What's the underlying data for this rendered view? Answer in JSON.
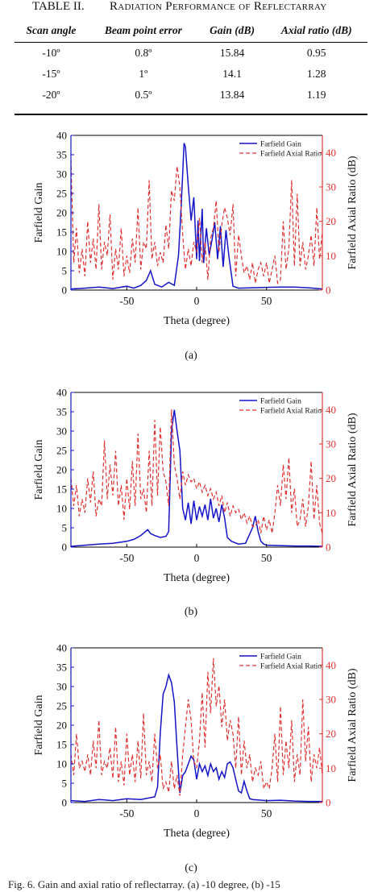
{
  "table": {
    "number": "TABLE II.",
    "title": "Radiation Performance of Reflectarray",
    "headers": [
      "Scan angle",
      "Beam point error",
      "Gain (dB)",
      "Axial ratio (dB)"
    ],
    "rows": [
      [
        "-10º",
        "0.8º",
        "15.84",
        "0.95"
      ],
      [
        "-15º",
        "1º",
        "14.1",
        "1.28"
      ],
      [
        "-20º",
        "0.5º",
        "13.84",
        "1.19"
      ]
    ]
  },
  "figure": {
    "caption": "Fig. 6. Gain and axial ratio of reflectarray. (a) -10 degree, (b) -15",
    "colors": {
      "gain": "#1414c8",
      "axial_ratio": "#e03232",
      "axis_left": "#1414c8",
      "axis_right": "#e03232"
    }
  },
  "chart_data": [
    {
      "type": "line",
      "panel_label": "(a)",
      "xlabel": "Theta (degree)",
      "ylabel": "Farfield Gain",
      "ylabel_right": "Farfield Axial Ratio (dB)",
      "xlim": [
        -90,
        90
      ],
      "ylim": [
        0,
        40
      ],
      "ylim_right": [
        0,
        45
      ],
      "xticks": [
        -50,
        0,
        50
      ],
      "yticks": [
        0,
        5,
        10,
        15,
        20,
        25,
        30,
        35,
        40
      ],
      "yticks_right": [
        0,
        10,
        20,
        30,
        40
      ],
      "legend": "top-right",
      "series": [
        {
          "name": "Farfield Gain",
          "axis": "left",
          "style": "solid",
          "x": [
            -90,
            -80,
            -70,
            -60,
            -50,
            -45,
            -40,
            -36,
            -33,
            -30,
            -25,
            -20,
            -16,
            -13,
            -11,
            -9,
            -8,
            -6,
            -4,
            -2,
            0,
            1,
            2,
            4,
            5,
            7,
            9,
            11,
            13,
            15,
            17,
            19,
            21,
            23,
            26,
            30,
            40,
            50,
            60,
            70,
            80,
            90
          ],
          "y": [
            0.3,
            0.5,
            0.8,
            0.4,
            1.0,
            0.5,
            1.2,
            2.5,
            5.0,
            1.5,
            0.8,
            2.0,
            1.2,
            9.0,
            22.0,
            38.0,
            37.0,
            27.0,
            18.0,
            24.0,
            8.0,
            18.0,
            7.5,
            21.0,
            7.0,
            16.0,
            9.0,
            13.0,
            17.5,
            8.0,
            16.5,
            6.0,
            15.5,
            9.0,
            1.0,
            0.5,
            0.6,
            0.7,
            0.8,
            0.8,
            0.6,
            0.3
          ]
        },
        {
          "name": "Farfield Axial Ratio",
          "axis": "right",
          "style": "dashed",
          "x": [
            -90,
            -88,
            -86,
            -84,
            -82,
            -80,
            -78,
            -76,
            -74,
            -72,
            -70,
            -68,
            -66,
            -64,
            -62,
            -60,
            -58,
            -56,
            -54,
            -52,
            -50,
            -48,
            -46,
            -44,
            -42,
            -40,
            -38,
            -36,
            -34,
            -32,
            -30,
            -28,
            -26,
            -24,
            -22,
            -20,
            -18,
            -16,
            -14,
            -12,
            -10,
            -8,
            -6,
            -4,
            -2,
            0,
            2,
            4,
            6,
            8,
            10,
            12,
            14,
            16,
            18,
            20,
            22,
            24,
            26,
            28,
            30,
            32,
            34,
            36,
            38,
            40,
            42,
            44,
            46,
            48,
            50,
            52,
            54,
            56,
            58,
            60,
            62,
            64,
            66,
            68,
            70,
            72,
            74,
            76,
            78,
            80,
            82,
            84,
            86,
            88,
            90
          ],
          "y": [
            38,
            8,
            18,
            5,
            12,
            4,
            20,
            8,
            15,
            6,
            25,
            6,
            14,
            10,
            22,
            3,
            12,
            6,
            18,
            4,
            10,
            5,
            15,
            8,
            24,
            6,
            14,
            12,
            32,
            9,
            14,
            7,
            11,
            8,
            19,
            12,
            29,
            26,
            36,
            30,
            16,
            6,
            12,
            7,
            14,
            11,
            21,
            8,
            14,
            3,
            15,
            18,
            26,
            11,
            19,
            24,
            21,
            16,
            25,
            4,
            16,
            10,
            5,
            7,
            3,
            8,
            2,
            6,
            8,
            4,
            8,
            2,
            6,
            10,
            2,
            3,
            20,
            6,
            12,
            32,
            7,
            28,
            7,
            14,
            6,
            10,
            16,
            7,
            24,
            9,
            17
          ]
        }
      ]
    },
    {
      "type": "line",
      "panel_label": "(b)",
      "xlabel": "Theta (degree)",
      "ylabel": "Farfield Gain",
      "ylabel_right": "Farfield Axial Ratio (dB)",
      "xlim": [
        -90,
        90
      ],
      "ylim": [
        0,
        40
      ],
      "ylim_right": [
        0,
        45
      ],
      "xticks": [
        -50,
        0,
        50
      ],
      "yticks": [
        0,
        5,
        10,
        15,
        20,
        25,
        30,
        35,
        40
      ],
      "yticks_right": [
        0,
        10,
        20,
        30,
        40
      ],
      "legend": "top-right",
      "series": [
        {
          "name": "Farfield Gain",
          "axis": "left",
          "style": "solid",
          "x": [
            -90,
            -80,
            -70,
            -60,
            -50,
            -45,
            -40,
            -35,
            -33,
            -30,
            -26,
            -22,
            -20,
            -18,
            -16,
            -14,
            -12,
            -10,
            -8,
            -6,
            -4,
            -2,
            0,
            2,
            4,
            6,
            8,
            10,
            12,
            14,
            16,
            18,
            20,
            22,
            25,
            30,
            35,
            40,
            42,
            44,
            46,
            48,
            50,
            60,
            70,
            80,
            90
          ],
          "y": [
            0.2,
            0.5,
            0.8,
            1.0,
            1.5,
            2.0,
            3.0,
            4.5,
            3.5,
            3.0,
            2.5,
            2.8,
            4.0,
            30.0,
            35.5,
            30.0,
            25.0,
            10.0,
            7.0,
            11.5,
            6.0,
            12.0,
            7.0,
            10.5,
            8.0,
            11.0,
            7.0,
            12.5,
            7.5,
            10.0,
            6.5,
            11.0,
            7.5,
            2.5,
            1.5,
            0.8,
            1.0,
            5.0,
            8.0,
            4.0,
            1.5,
            0.8,
            0.5,
            0.4,
            0.3,
            0.3,
            0.2
          ]
        },
        {
          "name": "Farfield Axial Ratio",
          "axis": "right",
          "style": "dashed",
          "x": [
            -90,
            -88,
            -86,
            -84,
            -82,
            -80,
            -78,
            -76,
            -74,
            -72,
            -70,
            -68,
            -66,
            -64,
            -62,
            -60,
            -58,
            -56,
            -54,
            -52,
            -50,
            -48,
            -46,
            -44,
            -42,
            -40,
            -38,
            -36,
            -34,
            -32,
            -30,
            -28,
            -26,
            -24,
            -22,
            -20,
            -18,
            -16,
            -14,
            -12,
            -10,
            -8,
            -6,
            -4,
            -2,
            0,
            2,
            4,
            6,
            8,
            10,
            12,
            14,
            16,
            18,
            20,
            22,
            24,
            26,
            28,
            30,
            32,
            34,
            36,
            38,
            40,
            42,
            44,
            46,
            48,
            50,
            52,
            54,
            56,
            58,
            60,
            62,
            64,
            66,
            68,
            70,
            72,
            74,
            76,
            78,
            80,
            82,
            84,
            86,
            88,
            90
          ],
          "y": [
            20,
            12,
            18,
            9,
            14,
            10,
            20,
            13,
            22,
            9,
            14,
            12,
            31,
            14,
            24,
            15,
            28,
            12,
            18,
            8,
            20,
            11,
            25,
            12,
            33,
            14,
            17,
            10,
            28,
            12,
            37,
            15,
            35,
            22,
            19,
            12,
            40,
            24,
            20,
            14,
            22,
            18,
            21,
            19,
            20,
            17,
            19,
            16,
            18,
            15,
            17,
            14,
            16,
            12,
            15,
            10,
            13,
            9,
            12,
            10,
            11,
            8,
            10,
            7,
            9,
            6,
            6,
            8,
            4,
            9,
            5,
            8,
            4,
            10,
            18,
            12,
            24,
            14,
            26,
            10,
            17,
            6,
            8,
            14,
            6,
            12,
            25,
            8,
            18,
            7,
            4
          ]
        }
      ]
    },
    {
      "type": "line",
      "panel_label": "(c)",
      "xlabel": "Theta (degree)",
      "ylabel": "Farfield Gain",
      "ylabel_right": "Farfield Axial Ratio (dB)",
      "xlim": [
        -90,
        90
      ],
      "ylim": [
        0,
        40
      ],
      "ylim_right": [
        0,
        45
      ],
      "xticks": [
        -50,
        0,
        50
      ],
      "yticks": [
        0,
        5,
        10,
        15,
        20,
        25,
        30,
        35,
        40
      ],
      "yticks_right": [
        0,
        10,
        20,
        30,
        40
      ],
      "legend": "top-right",
      "series": [
        {
          "name": "Farfield Gain",
          "axis": "left",
          "style": "solid",
          "x": [
            -90,
            -80,
            -70,
            -60,
            -50,
            -40,
            -30,
            -28,
            -26,
            -24,
            -22,
            -20,
            -18,
            -16,
            -14,
            -12,
            -10,
            -8,
            -6,
            -4,
            -2,
            0,
            2,
            4,
            6,
            8,
            10,
            12,
            14,
            16,
            18,
            20,
            22,
            24,
            26,
            28,
            30,
            32,
            34,
            36,
            38,
            40,
            50,
            60,
            70,
            80,
            90
          ],
          "y": [
            0.5,
            0.3,
            0.8,
            0.5,
            1.0,
            0.8,
            1.5,
            4.0,
            18.0,
            28.0,
            30.0,
            33.0,
            31.0,
            26.0,
            14.0,
            2.5,
            7.0,
            8.0,
            10.0,
            12.0,
            11.0,
            6.0,
            10.0,
            8.0,
            9.5,
            7.0,
            10.0,
            8.0,
            9.0,
            6.0,
            8.0,
            6.5,
            10.0,
            10.5,
            9.0,
            6.0,
            3.0,
            2.5,
            5.5,
            3.0,
            1.0,
            0.8,
            0.5,
            0.6,
            0.4,
            0.3,
            0.3
          ]
        },
        {
          "name": "Farfield Axial Ratio",
          "axis": "right",
          "style": "dashed",
          "x": [
            -90,
            -88,
            -86,
            -84,
            -82,
            -80,
            -78,
            -76,
            -74,
            -72,
            -70,
            -68,
            -66,
            -64,
            -62,
            -60,
            -58,
            -56,
            -54,
            -52,
            -50,
            -48,
            -46,
            -44,
            -42,
            -40,
            -38,
            -36,
            -34,
            -32,
            -30,
            -28,
            -26,
            -24,
            -22,
            -20,
            -18,
            -16,
            -14,
            -12,
            -10,
            -8,
            -6,
            -4,
            -2,
            0,
            2,
            4,
            6,
            8,
            10,
            12,
            14,
            16,
            18,
            20,
            22,
            24,
            26,
            28,
            30,
            32,
            34,
            36,
            38,
            40,
            42,
            44,
            46,
            48,
            50,
            52,
            54,
            56,
            58,
            60,
            62,
            64,
            66,
            68,
            70,
            72,
            74,
            76,
            78,
            80,
            82,
            84,
            86,
            88,
            90
          ],
          "y": [
            14,
            8,
            20,
            10,
            12,
            9,
            14,
            8,
            18,
            10,
            24,
            8,
            12,
            10,
            16,
            7,
            22,
            6,
            12,
            5,
            20,
            8,
            14,
            6,
            18,
            7,
            26,
            8,
            12,
            6,
            20,
            10,
            14,
            4,
            6,
            3,
            12,
            4,
            8,
            2,
            14,
            22,
            30,
            24,
            12,
            10,
            18,
            32,
            16,
            38,
            26,
            42,
            28,
            34,
            22,
            30,
            18,
            24,
            20,
            10,
            25,
            8,
            18,
            10,
            14,
            6,
            10,
            8,
            12,
            4,
            6,
            4,
            10,
            20,
            6,
            28,
            8,
            18,
            10,
            24,
            6,
            14,
            8,
            30,
            12,
            22,
            6,
            14,
            10,
            16,
            8
          ]
        }
      ]
    }
  ]
}
